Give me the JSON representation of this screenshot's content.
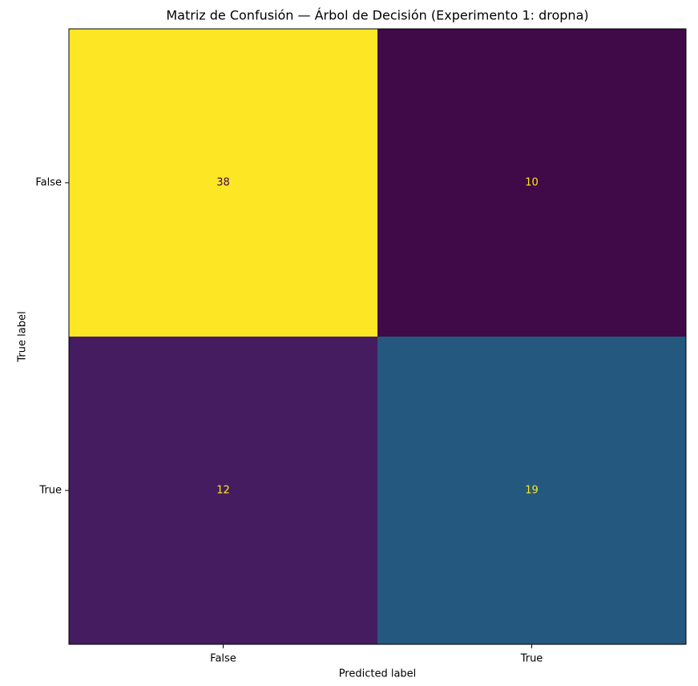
{
  "chart_data": {
    "type": "heatmap",
    "title": "Matriz de Confusión — Árbol de Decisión (Experimento 1: dropna)",
    "x_label": "Predicted label",
    "y_label": "True label",
    "x_categories": [
      "False",
      "True"
    ],
    "y_categories": [
      "False",
      "True"
    ],
    "values": [
      [
        38,
        10
      ],
      [
        12,
        19
      ]
    ],
    "colors": [
      [
        "#fde725",
        "#3f0a47"
      ],
      [
        "#451c5f",
        "#24587e"
      ]
    ],
    "text_colors": [
      [
        "#440154",
        "#fde725"
      ],
      [
        "#fde725",
        "#fde725"
      ]
    ]
  }
}
